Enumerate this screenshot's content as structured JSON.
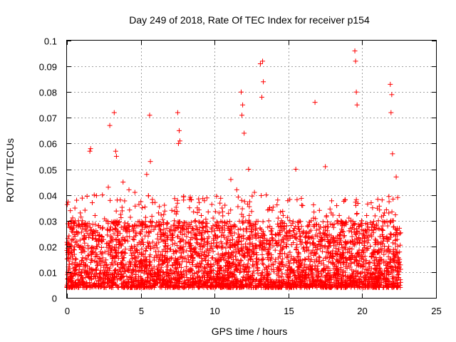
{
  "chart_data": {
    "type": "scatter",
    "title": "Day 249 of 2018, Rate Of TEC Index for receiver p154",
    "xlabel": "GPS time / hours",
    "ylabel": "ROTI / TECUs",
    "xlim": [
      0,
      25
    ],
    "ylim": [
      0,
      0.1
    ],
    "xticks": [
      0,
      5,
      10,
      15,
      20,
      25
    ],
    "xtick_labels": [
      "0",
      "5",
      "10",
      "15",
      "20",
      "25"
    ],
    "yticks": [
      0,
      0.01,
      0.02,
      0.03,
      0.04,
      0.05,
      0.06,
      0.07,
      0.08,
      0.09,
      0.1
    ],
    "ytick_labels": [
      "0",
      "0.01",
      "0.02",
      "0.03",
      "0.04",
      "0.05",
      "0.06",
      "0.07",
      "0.08",
      "0.09",
      "0.1"
    ],
    "grid": true,
    "marker": "+",
    "color": "#ff0000",
    "series": [
      {
        "name": "ROTI",
        "x": [
          0.1,
          0.4,
          0.8,
          1.2,
          1.6,
          2.0,
          2.3,
          2.7,
          3.0,
          3.3,
          3.6,
          4.0,
          4.3,
          4.7,
          5.0,
          5.2,
          5.5,
          5.9,
          6.3,
          6.7,
          7.0,
          7.4,
          7.7,
          8.1,
          8.5,
          8.9,
          9.3,
          9.7,
          10.1,
          10.5,
          10.9,
          11.3,
          11.7,
          12.1,
          12.5,
          12.9,
          13.3,
          13.7,
          14.1,
          14.5,
          14.9,
          15.3,
          15.7,
          16.1,
          16.5,
          16.9,
          17.3,
          17.7,
          18.1,
          18.5,
          18.9,
          19.3,
          19.7,
          20.1,
          20.5,
          20.9,
          21.3,
          21.7,
          22.1,
          22.5,
          0.2,
          0.6,
          1.0,
          1.4,
          1.8,
          2.2,
          2.6,
          3.1,
          3.5,
          3.9,
          4.4,
          4.8,
          5.3,
          5.7,
          6.1,
          6.5,
          6.9,
          7.3,
          7.8,
          8.2,
          8.6,
          9.0,
          9.4,
          9.8,
          10.2,
          10.6,
          11.0,
          11.4,
          11.8,
          12.2,
          12.6,
          13.0,
          13.4,
          13.8,
          14.2,
          14.6,
          15.0,
          15.4,
          15.8,
          16.2,
          16.6,
          17.0,
          17.4,
          17.8,
          18.2,
          18.6,
          19.0,
          19.4,
          19.8,
          20.2,
          20.6,
          21.0,
          21.4,
          21.8,
          22.2,
          22.6,
          1.55,
          1.6,
          2.9,
          3.2,
          3.3,
          3.35,
          5.6,
          5.65,
          7.5,
          7.6,
          7.55,
          7.65,
          11.8,
          11.9,
          11.85,
          12.0,
          13.1,
          13.2,
          13.25,
          13.3,
          16.8,
          19.5,
          19.55,
          19.6,
          19.65,
          21.9,
          22.0,
          21.95,
          22.05,
          22.3,
          0.3,
          0.9,
          1.3,
          1.9,
          2.4,
          2.8,
          3.4,
          3.8,
          4.2,
          4.6,
          5.1,
          5.4,
          5.8,
          6.2,
          6.6,
          7.1,
          7.9,
          8.3,
          8.7,
          9.1,
          9.5,
          9.9,
          10.3,
          10.7,
          11.1,
          11.5,
          12.3,
          12.7,
          13.5,
          13.9,
          14.3,
          14.7,
          15.1,
          15.5,
          15.9,
          16.3,
          16.7,
          17.1,
          17.5,
          17.9,
          18.3,
          18.7,
          19.1,
          20.3,
          20.7,
          21.1,
          21.5,
          22.4
        ],
        "y": [
          0.012,
          0.015,
          0.009,
          0.018,
          0.011,
          0.02,
          0.014,
          0.01,
          0.022,
          0.016,
          0.025,
          0.013,
          0.019,
          0.028,
          0.021,
          0.017,
          0.024,
          0.012,
          0.015,
          0.02,
          0.026,
          0.018,
          0.022,
          0.014,
          0.017,
          0.012,
          0.023,
          0.019,
          0.015,
          0.021,
          0.027,
          0.018,
          0.024,
          0.02,
          0.016,
          0.013,
          0.019,
          0.022,
          0.014,
          0.011,
          0.016,
          0.01,
          0.017,
          0.013,
          0.012,
          0.015,
          0.018,
          0.02,
          0.013,
          0.016,
          0.021,
          0.019,
          0.017,
          0.014,
          0.012,
          0.011,
          0.015,
          0.013,
          0.014,
          0.012,
          0.008,
          0.006,
          0.007,
          0.009,
          0.005,
          0.008,
          0.006,
          0.007,
          0.009,
          0.006,
          0.008,
          0.005,
          0.007,
          0.009,
          0.006,
          0.008,
          0.007,
          0.006,
          0.009,
          0.007,
          0.005,
          0.008,
          0.006,
          0.007,
          0.009,
          0.005,
          0.008,
          0.007,
          0.006,
          0.009,
          0.007,
          0.005,
          0.008,
          0.006,
          0.007,
          0.005,
          0.008,
          0.006,
          0.007,
          0.009,
          0.005,
          0.008,
          0.006,
          0.007,
          0.009,
          0.005,
          0.008,
          0.006,
          0.007,
          0.005,
          0.008,
          0.006,
          0.007,
          0.009,
          0.005,
          0.006,
          0.057,
          0.058,
          0.067,
          0.072,
          0.057,
          0.055,
          0.071,
          0.053,
          0.072,
          0.065,
          0.06,
          0.061,
          0.08,
          0.075,
          0.071,
          0.064,
          0.091,
          0.078,
          0.092,
          0.084,
          0.076,
          0.096,
          0.092,
          0.08,
          0.075,
          0.083,
          0.079,
          0.072,
          0.056,
          0.047,
          0.03,
          0.033,
          0.028,
          0.032,
          0.04,
          0.043,
          0.038,
          0.045,
          0.042,
          0.041,
          0.035,
          0.048,
          0.037,
          0.033,
          0.036,
          0.034,
          0.038,
          0.035,
          0.03,
          0.032,
          0.029,
          0.031,
          0.033,
          0.036,
          0.046,
          0.042,
          0.05,
          0.041,
          0.04,
          0.034,
          0.031,
          0.028,
          0.03,
          0.05,
          0.036,
          0.028,
          0.031,
          0.034,
          0.051,
          0.033,
          0.03,
          0.029,
          0.031,
          0.032,
          0.035,
          0.03,
          0.033,
          0.039
        ]
      }
    ],
    "data_extent_x": [
      0,
      22.6
    ]
  }
}
